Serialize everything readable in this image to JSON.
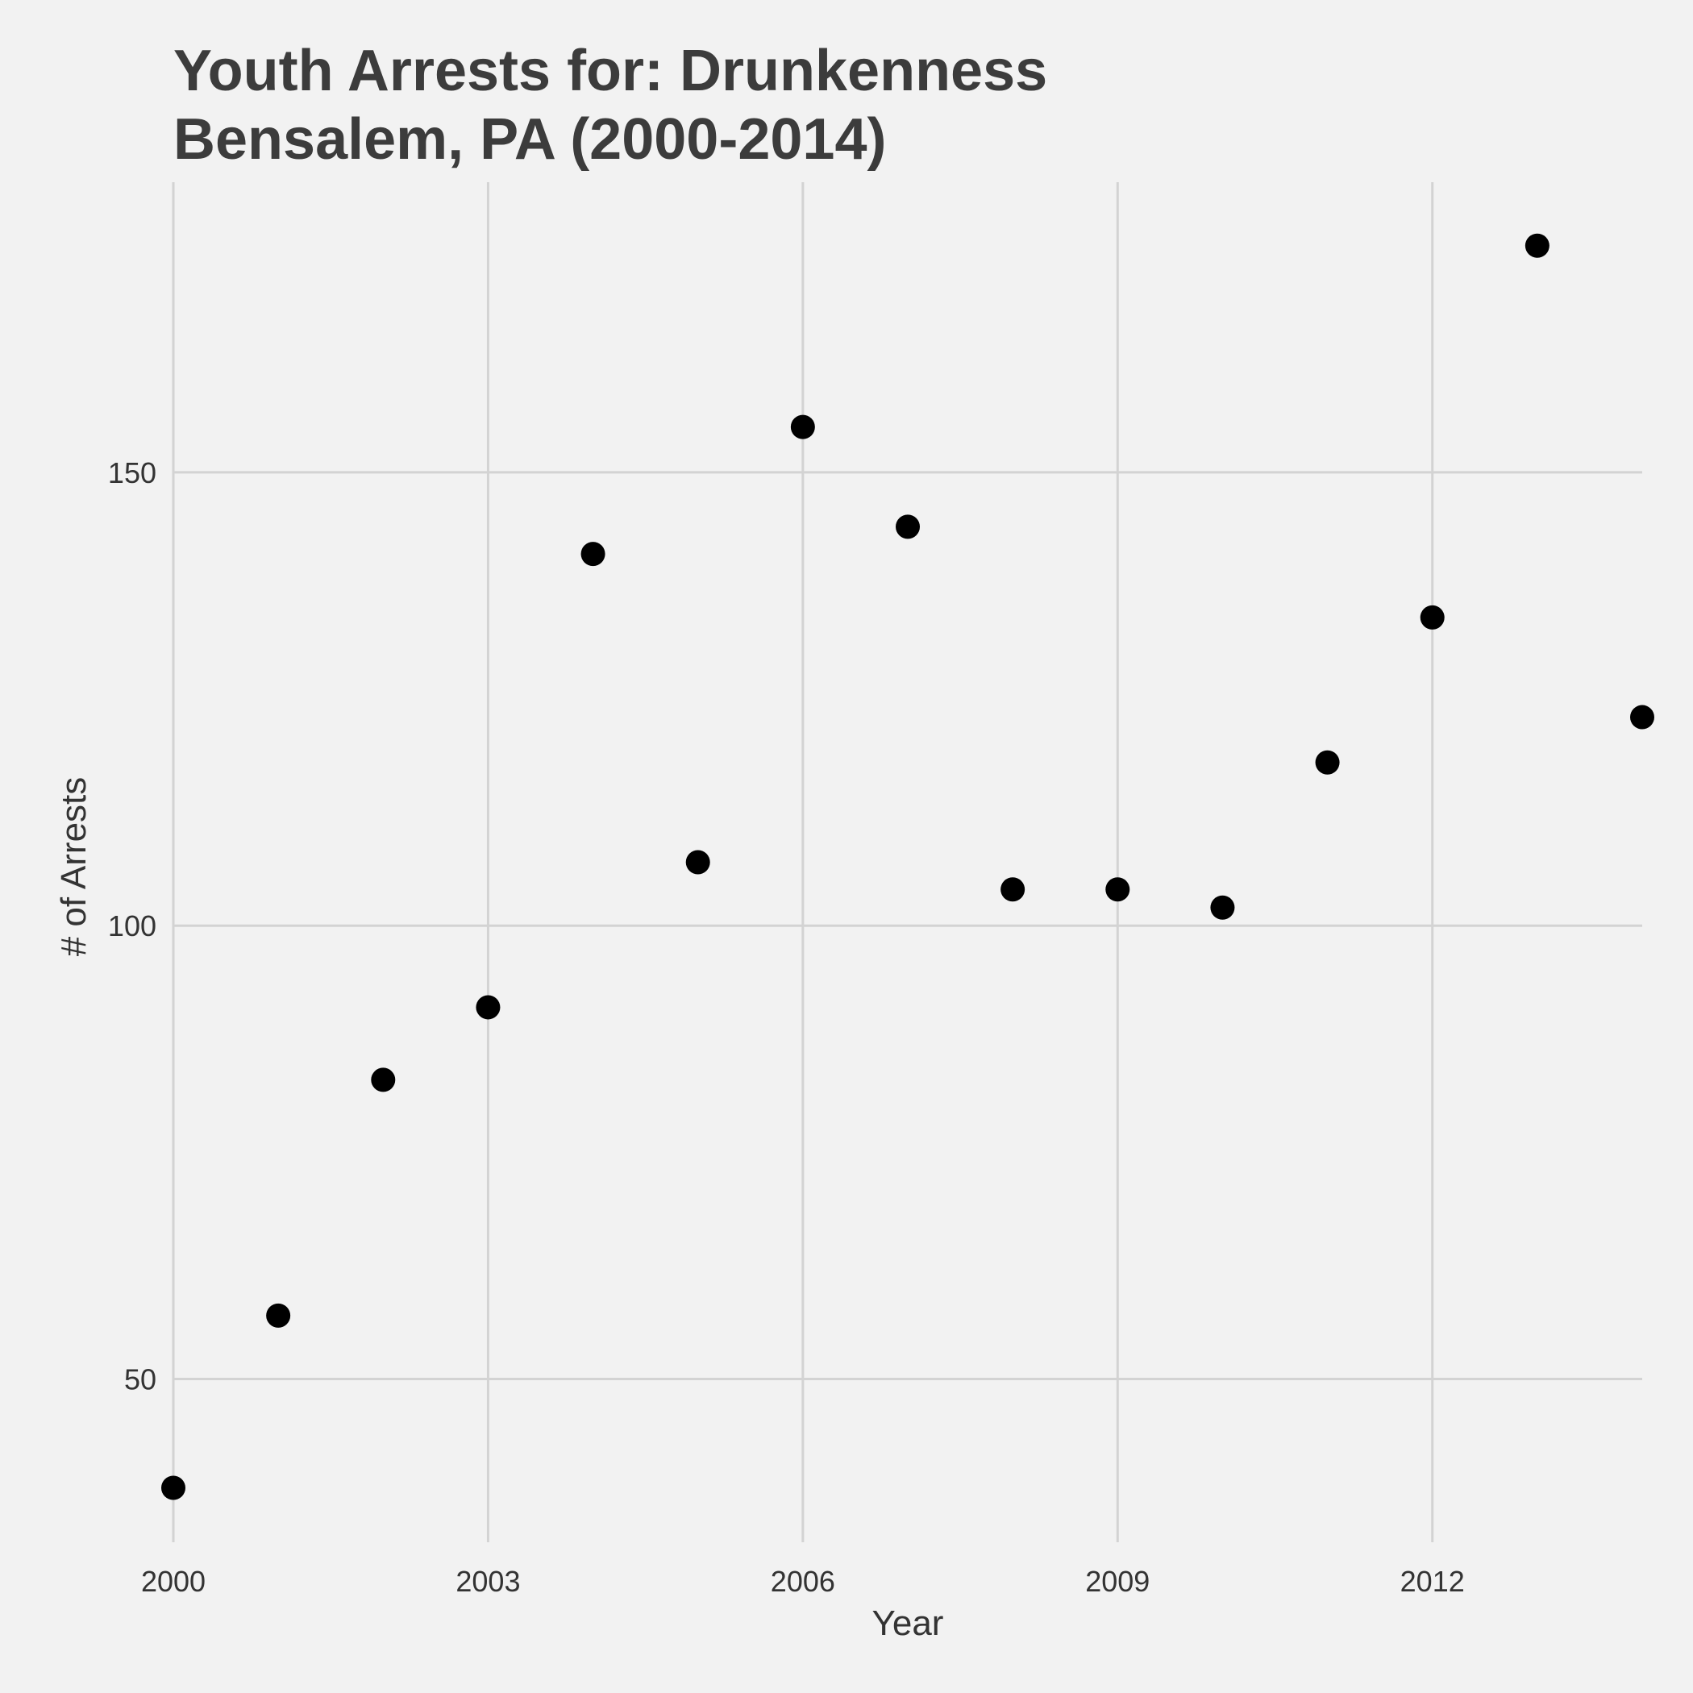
{
  "chart_data": {
    "type": "scatter",
    "title": [
      "Youth Arrests for: Drunkenness",
      "Bensalem, PA (2000-2014)"
    ],
    "xlabel": "Year",
    "ylabel": "# of Arrests",
    "x": [
      2000,
      2001,
      2002,
      2003,
      2004,
      2005,
      2006,
      2007,
      2008,
      2009,
      2010,
      2011,
      2012,
      2013,
      2014
    ],
    "y": [
      38,
      57,
      83,
      91,
      141,
      107,
      155,
      144,
      104,
      104,
      102,
      118,
      134,
      175,
      123
    ],
    "xlim": [
      2000,
      2014
    ],
    "ylim": [
      32,
      182
    ],
    "xticks": [
      2000,
      2003,
      2006,
      2009,
      2012
    ],
    "yticks": [
      50,
      100,
      150
    ],
    "grid": true,
    "point_color": "#000000",
    "grid_color": "#d3d3d3",
    "background": "#f2f2f2"
  }
}
